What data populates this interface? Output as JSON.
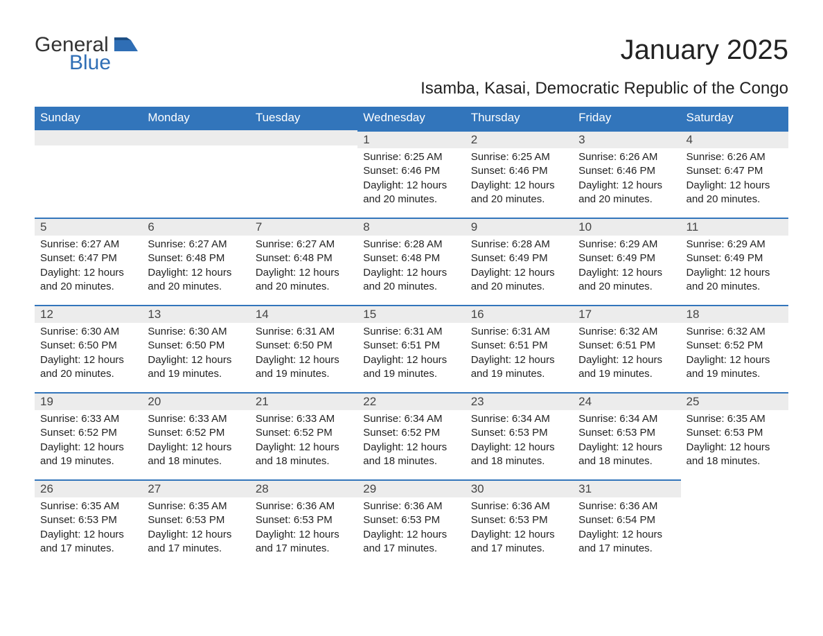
{
  "brand": {
    "word1": "General",
    "word2": "Blue"
  },
  "title": "January 2025",
  "location": "Isamba, Kasai, Democratic Republic of the Congo",
  "colors": {
    "header_bg": "#3275bb",
    "header_text": "#ffffff",
    "daynum_bg": "#ececec",
    "divider": "#3275bb",
    "body_text": "#222222",
    "logo_blue": "#2f6eb5",
    "page_bg": "#ffffff"
  },
  "typography": {
    "title_fontsize": 40,
    "location_fontsize": 24,
    "header_fontsize": 17,
    "daynum_fontsize": 17,
    "body_fontsize": 15
  },
  "layout": {
    "columns": 7,
    "rows": 5
  },
  "weekdays": [
    "Sunday",
    "Monday",
    "Tuesday",
    "Wednesday",
    "Thursday",
    "Friday",
    "Saturday"
  ],
  "weeks": [
    [
      null,
      null,
      null,
      {
        "day": "1",
        "sunrise": "Sunrise: 6:25 AM",
        "sunset": "Sunset: 6:46 PM",
        "daylight": "Daylight: 12 hours and 20 minutes."
      },
      {
        "day": "2",
        "sunrise": "Sunrise: 6:25 AM",
        "sunset": "Sunset: 6:46 PM",
        "daylight": "Daylight: 12 hours and 20 minutes."
      },
      {
        "day": "3",
        "sunrise": "Sunrise: 6:26 AM",
        "sunset": "Sunset: 6:46 PM",
        "daylight": "Daylight: 12 hours and 20 minutes."
      },
      {
        "day": "4",
        "sunrise": "Sunrise: 6:26 AM",
        "sunset": "Sunset: 6:47 PM",
        "daylight": "Daylight: 12 hours and 20 minutes."
      }
    ],
    [
      {
        "day": "5",
        "sunrise": "Sunrise: 6:27 AM",
        "sunset": "Sunset: 6:47 PM",
        "daylight": "Daylight: 12 hours and 20 minutes."
      },
      {
        "day": "6",
        "sunrise": "Sunrise: 6:27 AM",
        "sunset": "Sunset: 6:48 PM",
        "daylight": "Daylight: 12 hours and 20 minutes."
      },
      {
        "day": "7",
        "sunrise": "Sunrise: 6:27 AM",
        "sunset": "Sunset: 6:48 PM",
        "daylight": "Daylight: 12 hours and 20 minutes."
      },
      {
        "day": "8",
        "sunrise": "Sunrise: 6:28 AM",
        "sunset": "Sunset: 6:48 PM",
        "daylight": "Daylight: 12 hours and 20 minutes."
      },
      {
        "day": "9",
        "sunrise": "Sunrise: 6:28 AM",
        "sunset": "Sunset: 6:49 PM",
        "daylight": "Daylight: 12 hours and 20 minutes."
      },
      {
        "day": "10",
        "sunrise": "Sunrise: 6:29 AM",
        "sunset": "Sunset: 6:49 PM",
        "daylight": "Daylight: 12 hours and 20 minutes."
      },
      {
        "day": "11",
        "sunrise": "Sunrise: 6:29 AM",
        "sunset": "Sunset: 6:49 PM",
        "daylight": "Daylight: 12 hours and 20 minutes."
      }
    ],
    [
      {
        "day": "12",
        "sunrise": "Sunrise: 6:30 AM",
        "sunset": "Sunset: 6:50 PM",
        "daylight": "Daylight: 12 hours and 20 minutes."
      },
      {
        "day": "13",
        "sunrise": "Sunrise: 6:30 AM",
        "sunset": "Sunset: 6:50 PM",
        "daylight": "Daylight: 12 hours and 19 minutes."
      },
      {
        "day": "14",
        "sunrise": "Sunrise: 6:31 AM",
        "sunset": "Sunset: 6:50 PM",
        "daylight": "Daylight: 12 hours and 19 minutes."
      },
      {
        "day": "15",
        "sunrise": "Sunrise: 6:31 AM",
        "sunset": "Sunset: 6:51 PM",
        "daylight": "Daylight: 12 hours and 19 minutes."
      },
      {
        "day": "16",
        "sunrise": "Sunrise: 6:31 AM",
        "sunset": "Sunset: 6:51 PM",
        "daylight": "Daylight: 12 hours and 19 minutes."
      },
      {
        "day": "17",
        "sunrise": "Sunrise: 6:32 AM",
        "sunset": "Sunset: 6:51 PM",
        "daylight": "Daylight: 12 hours and 19 minutes."
      },
      {
        "day": "18",
        "sunrise": "Sunrise: 6:32 AM",
        "sunset": "Sunset: 6:52 PM",
        "daylight": "Daylight: 12 hours and 19 minutes."
      }
    ],
    [
      {
        "day": "19",
        "sunrise": "Sunrise: 6:33 AM",
        "sunset": "Sunset: 6:52 PM",
        "daylight": "Daylight: 12 hours and 19 minutes."
      },
      {
        "day": "20",
        "sunrise": "Sunrise: 6:33 AM",
        "sunset": "Sunset: 6:52 PM",
        "daylight": "Daylight: 12 hours and 18 minutes."
      },
      {
        "day": "21",
        "sunrise": "Sunrise: 6:33 AM",
        "sunset": "Sunset: 6:52 PM",
        "daylight": "Daylight: 12 hours and 18 minutes."
      },
      {
        "day": "22",
        "sunrise": "Sunrise: 6:34 AM",
        "sunset": "Sunset: 6:52 PM",
        "daylight": "Daylight: 12 hours and 18 minutes."
      },
      {
        "day": "23",
        "sunrise": "Sunrise: 6:34 AM",
        "sunset": "Sunset: 6:53 PM",
        "daylight": "Daylight: 12 hours and 18 minutes."
      },
      {
        "day": "24",
        "sunrise": "Sunrise: 6:34 AM",
        "sunset": "Sunset: 6:53 PM",
        "daylight": "Daylight: 12 hours and 18 minutes."
      },
      {
        "day": "25",
        "sunrise": "Sunrise: 6:35 AM",
        "sunset": "Sunset: 6:53 PM",
        "daylight": "Daylight: 12 hours and 18 minutes."
      }
    ],
    [
      {
        "day": "26",
        "sunrise": "Sunrise: 6:35 AM",
        "sunset": "Sunset: 6:53 PM",
        "daylight": "Daylight: 12 hours and 17 minutes."
      },
      {
        "day": "27",
        "sunrise": "Sunrise: 6:35 AM",
        "sunset": "Sunset: 6:53 PM",
        "daylight": "Daylight: 12 hours and 17 minutes."
      },
      {
        "day": "28",
        "sunrise": "Sunrise: 6:36 AM",
        "sunset": "Sunset: 6:53 PM",
        "daylight": "Daylight: 12 hours and 17 minutes."
      },
      {
        "day": "29",
        "sunrise": "Sunrise: 6:36 AM",
        "sunset": "Sunset: 6:53 PM",
        "daylight": "Daylight: 12 hours and 17 minutes."
      },
      {
        "day": "30",
        "sunrise": "Sunrise: 6:36 AM",
        "sunset": "Sunset: 6:53 PM",
        "daylight": "Daylight: 12 hours and 17 minutes."
      },
      {
        "day": "31",
        "sunrise": "Sunrise: 6:36 AM",
        "sunset": "Sunset: 6:54 PM",
        "daylight": "Daylight: 12 hours and 17 minutes."
      },
      null
    ]
  ]
}
